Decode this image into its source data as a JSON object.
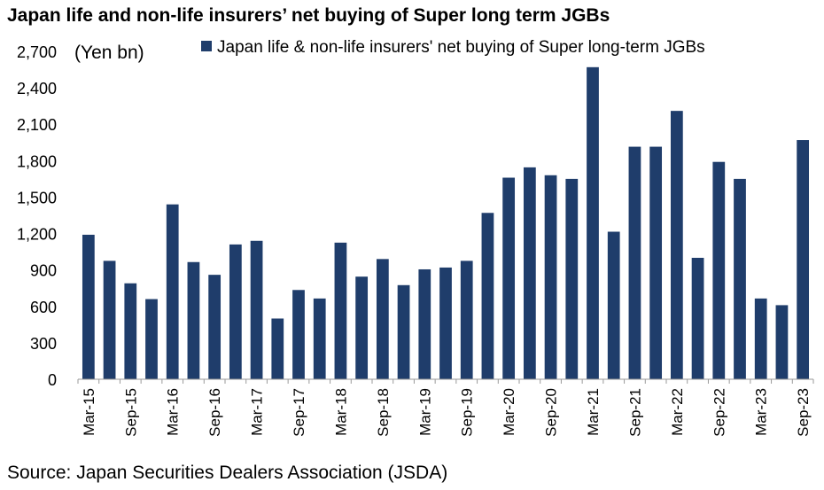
{
  "title": "Japan life and non-life insurers’ net buying of Super long term JGBs",
  "source": "Source: Japan Securities Dealers Association (JSDA)",
  "chart_data": {
    "type": "bar",
    "title": "Japan life and non-life insurers’ net buying of Super long term JGBs",
    "unit_label": "(Yen bn)",
    "xlabel": "",
    "ylabel": "",
    "ylim": [
      0,
      2700
    ],
    "yticks": [
      0,
      300,
      600,
      900,
      1200,
      1500,
      1800,
      2100,
      2400,
      2700
    ],
    "ytick_labels": [
      "0",
      "300",
      "600",
      "900",
      "1,200",
      "1,500",
      "1,800",
      "2,100",
      "2,400",
      "2,700"
    ],
    "grid": false,
    "legend_position": "top",
    "bar_color": "#1f3d6b",
    "categories": [
      "Mar-15",
      "Jun-15",
      "Sep-15",
      "Dec-15",
      "Mar-16",
      "Jun-16",
      "Sep-16",
      "Dec-16",
      "Mar-17",
      "Jun-17",
      "Sep-17",
      "Dec-17",
      "Mar-18",
      "Jun-18",
      "Sep-18",
      "Dec-18",
      "Mar-19",
      "Jun-19",
      "Sep-19",
      "Dec-19",
      "Mar-20",
      "Jun-20",
      "Sep-20",
      "Dec-20",
      "Mar-21",
      "Jun-21",
      "Sep-21",
      "Dec-21",
      "Mar-22",
      "Jun-22",
      "Sep-22",
      "Dec-22",
      "Mar-23",
      "Jun-23",
      "Sep-23"
    ],
    "xtick_labels": [
      "Mar-15",
      "",
      "Sep-15",
      "",
      "Mar-16",
      "",
      "Sep-16",
      "",
      "Mar-17",
      "",
      "Sep-17",
      "",
      "Mar-18",
      "",
      "Sep-18",
      "",
      "Mar-19",
      "",
      "Sep-19",
      "",
      "Mar-20",
      "",
      "Sep-20",
      "",
      "Mar-21",
      "",
      "Sep-21",
      "",
      "Mar-22",
      "",
      "Sep-22",
      "",
      "Mar-23",
      "",
      "Sep-23"
    ],
    "series": [
      {
        "name": "Japan life & non-life insurers' net buying of Super long-term JGBs",
        "values": [
          1190,
          975,
          790,
          660,
          1440,
          965,
          860,
          1110,
          1140,
          500,
          735,
          665,
          1125,
          845,
          990,
          775,
          905,
          920,
          975,
          1370,
          1660,
          1745,
          1680,
          1650,
          2570,
          1215,
          1915,
          1915,
          2210,
          1000,
          1790,
          1650,
          665,
          610,
          1970
        ]
      }
    ]
  }
}
